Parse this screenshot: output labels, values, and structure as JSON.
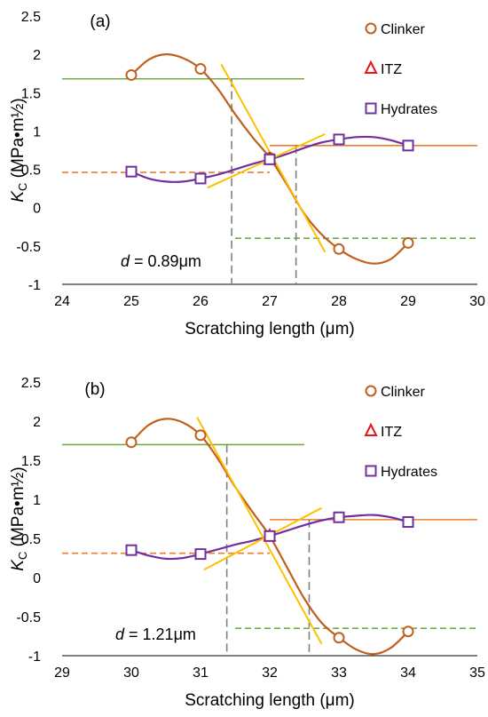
{
  "chart_data": [
    {
      "type": "line",
      "panel_label": "(a)",
      "xlabel": "Scratching length (μm)",
      "ylabel": "K",
      "ylabel_sub": "C",
      "ylabel_unit": " (MPa•m½)",
      "xlim": [
        24,
        30
      ],
      "ylim": [
        -1,
        2.5
      ],
      "xticks": [
        "24",
        "25",
        "26",
        "27",
        "28",
        "29",
        "30"
      ],
      "yticks": [
        "-1",
        "-0.5",
        "0",
        "0.5",
        "1",
        "1.5",
        "2",
        "2.5"
      ],
      "legend_position": "top-right",
      "annotation_var": "d",
      "annotation_value": " = 0.89μm",
      "series": [
        {
          "name": "Clinker",
          "marker": "circle",
          "color": "#C0601E",
          "points": [
            [
              25,
              1.73
            ],
            [
              26,
              1.81
            ],
            [
              27,
              0.65
            ],
            [
              28,
              -0.54
            ],
            [
              29,
              -0.46
            ]
          ],
          "curve": [
            [
              25,
              1.73
            ],
            [
              25.25,
              1.93
            ],
            [
              25.5,
              2.0
            ],
            [
              25.75,
              1.95
            ],
            [
              26,
              1.81
            ],
            [
              26.25,
              1.55
            ],
            [
              26.5,
              1.22
            ],
            [
              26.75,
              0.92
            ],
            [
              27,
              0.65
            ],
            [
              27.25,
              0.3
            ],
            [
              27.5,
              -0.08
            ],
            [
              27.75,
              -0.35
            ],
            [
              28,
              -0.54
            ],
            [
              28.25,
              -0.67
            ],
            [
              28.5,
              -0.73
            ],
            [
              28.75,
              -0.67
            ],
            [
              29,
              -0.46
            ]
          ]
        },
        {
          "name": "ITZ",
          "marker": "triangle",
          "color": "#E8141E",
          "points": [
            [
              27,
              0.63
            ]
          ]
        },
        {
          "name": "Hydrates",
          "marker": "square",
          "color": "#7030A0",
          "points": [
            [
              25,
              0.47
            ],
            [
              26,
              0.38
            ],
            [
              27,
              0.63
            ],
            [
              28,
              0.89
            ],
            [
              29,
              0.81
            ]
          ],
          "curve": [
            [
              25,
              0.47
            ],
            [
              25.25,
              0.38
            ],
            [
              25.5,
              0.34
            ],
            [
              25.75,
              0.34
            ],
            [
              26,
              0.38
            ],
            [
              26.25,
              0.43
            ],
            [
              26.5,
              0.5
            ],
            [
              26.75,
              0.57
            ],
            [
              27,
              0.63
            ],
            [
              27.25,
              0.7
            ],
            [
              27.5,
              0.78
            ],
            [
              27.75,
              0.85
            ],
            [
              28,
              0.89
            ],
            [
              28.25,
              0.92
            ],
            [
              28.5,
              0.92
            ],
            [
              28.75,
              0.88
            ],
            [
              29,
              0.81
            ]
          ]
        }
      ],
      "reference_lines": [
        {
          "color": "#70AD47",
          "dash": false,
          "x": [
            24,
            27.5
          ],
          "y": [
            1.68,
            1.68
          ]
        },
        {
          "color": "#ED7D31",
          "dash": true,
          "x": [
            24,
            27
          ],
          "y": [
            0.46,
            0.46
          ]
        },
        {
          "color": "#ED7D31",
          "dash": false,
          "x": [
            27,
            30
          ],
          "y": [
            0.81,
            0.81
          ]
        },
        {
          "color": "#70AD47",
          "dash": true,
          "x": [
            26.5,
            30
          ],
          "y": [
            -0.4,
            -0.4
          ]
        }
      ],
      "tangent_lines": [
        {
          "color": "#FFC000",
          "x": [
            26.3,
            27.8
          ],
          "y": [
            1.87,
            -0.58
          ]
        },
        {
          "color": "#FFC000",
          "x": [
            26.1,
            27.8
          ],
          "y": [
            0.26,
            0.96
          ]
        }
      ],
      "vertical_lines": [
        {
          "color": "#7F7F7F",
          "x": 26.45,
          "y": [
            1.68,
            -1
          ]
        },
        {
          "color": "#7F7F7F",
          "x": 27.38,
          "y": [
            0.81,
            -1
          ]
        }
      ]
    },
    {
      "type": "line",
      "panel_label": "(b)",
      "xlabel": "Scratching length (μm)",
      "ylabel": "K",
      "ylabel_sub": "C",
      "ylabel_unit": " (MPa•m½)",
      "xlim": [
        29,
        35
      ],
      "ylim": [
        -1,
        2.5
      ],
      "xticks": [
        "29",
        "30",
        "31",
        "32",
        "33",
        "34",
        "35"
      ],
      "yticks": [
        "-1",
        "-0.5",
        "0",
        "0.5",
        "1",
        "1.5",
        "2",
        "2.5"
      ],
      "legend_position": "top-right",
      "annotation_var": "d",
      "annotation_value": " = 1.21μm",
      "series": [
        {
          "name": "Clinker",
          "marker": "circle",
          "color": "#C0601E",
          "points": [
            [
              30,
              1.73
            ],
            [
              31,
              1.82
            ],
            [
              32,
              0.53
            ],
            [
              33,
              -0.77
            ],
            [
              34,
              -0.69
            ]
          ],
          "curve": [
            [
              30,
              1.73
            ],
            [
              30.25,
              1.95
            ],
            [
              30.5,
              2.03
            ],
            [
              30.75,
              1.98
            ],
            [
              31,
              1.82
            ],
            [
              31.25,
              1.52
            ],
            [
              31.5,
              1.16
            ],
            [
              31.75,
              0.84
            ],
            [
              32,
              0.53
            ],
            [
              32.25,
              0.13
            ],
            [
              32.5,
              -0.27
            ],
            [
              32.75,
              -0.58
            ],
            [
              33,
              -0.77
            ],
            [
              33.25,
              -0.92
            ],
            [
              33.5,
              -0.98
            ],
            [
              33.75,
              -0.9
            ],
            [
              34,
              -0.69
            ]
          ]
        },
        {
          "name": "ITZ",
          "marker": "triangle",
          "color": "#E8141E",
          "points": [
            [
              32,
              0.53
            ]
          ]
        },
        {
          "name": "Hydrates",
          "marker": "square",
          "color": "#7030A0",
          "points": [
            [
              30,
              0.35
            ],
            [
              31,
              0.3
            ],
            [
              32,
              0.53
            ],
            [
              33,
              0.77
            ],
            [
              34,
              0.71
            ]
          ],
          "curve": [
            [
              30,
              0.35
            ],
            [
              30.25,
              0.28
            ],
            [
              30.5,
              0.24
            ],
            [
              30.75,
              0.25
            ],
            [
              31,
              0.3
            ],
            [
              31.25,
              0.36
            ],
            [
              31.5,
              0.42
            ],
            [
              31.75,
              0.47
            ],
            [
              32,
              0.53
            ],
            [
              32.25,
              0.6
            ],
            [
              32.5,
              0.67
            ],
            [
              32.75,
              0.73
            ],
            [
              33,
              0.77
            ],
            [
              33.25,
              0.79
            ],
            [
              33.5,
              0.8
            ],
            [
              33.75,
              0.77
            ],
            [
              34,
              0.71
            ]
          ]
        }
      ],
      "reference_lines": [
        {
          "color": "#70AD47",
          "dash": false,
          "x": [
            29,
            32.5
          ],
          "y": [
            1.7,
            1.7
          ]
        },
        {
          "color": "#ED7D31",
          "dash": true,
          "x": [
            29,
            32
          ],
          "y": [
            0.31,
            0.31
          ]
        },
        {
          "color": "#ED7D31",
          "dash": false,
          "x": [
            32,
            35
          ],
          "y": [
            0.74,
            0.74
          ]
        },
        {
          "color": "#70AD47",
          "dash": true,
          "x": [
            31.5,
            35
          ],
          "y": [
            -0.65,
            -0.65
          ]
        }
      ],
      "tangent_lines": [
        {
          "color": "#FFC000",
          "x": [
            30.95,
            32.75
          ],
          "y": [
            2.05,
            -0.85
          ]
        },
        {
          "color": "#FFC000",
          "x": [
            31.05,
            32.75
          ],
          "y": [
            0.1,
            0.89
          ]
        }
      ],
      "vertical_lines": [
        {
          "color": "#7F7F7F",
          "x": 31.38,
          "y": [
            1.7,
            -1
          ]
        },
        {
          "color": "#7F7F7F",
          "x": 32.57,
          "y": [
            0.74,
            -1
          ]
        }
      ]
    }
  ]
}
